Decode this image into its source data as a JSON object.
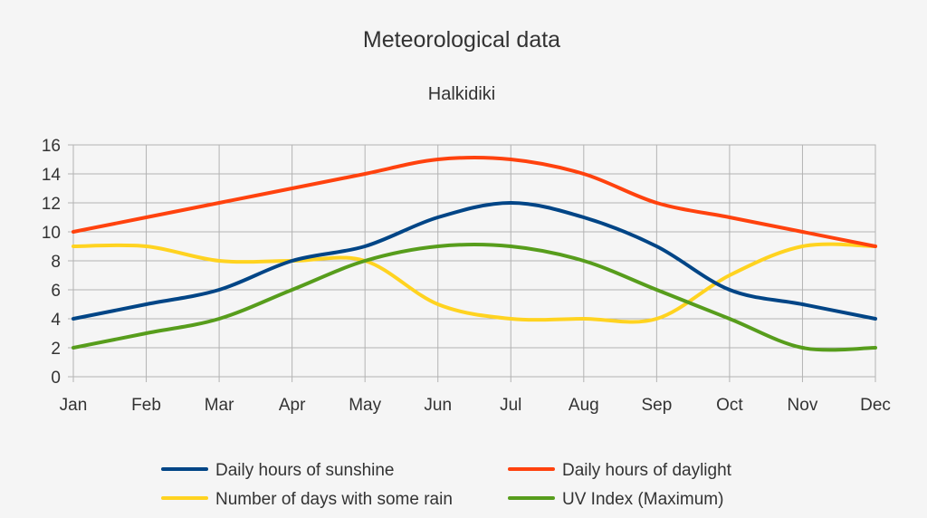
{
  "chart_data": {
    "type": "line",
    "title": "Meteorological data",
    "subtitle": "Halkidiki",
    "categories": [
      "Jan",
      "Feb",
      "Mar",
      "Apr",
      "May",
      "Jun",
      "Jul",
      "Aug",
      "Sep",
      "Oct",
      "Nov",
      "Dec"
    ],
    "y_ticks": [
      "0",
      "2",
      "4",
      "6",
      "8",
      "10",
      "12",
      "14",
      "16"
    ],
    "ylim": [
      0,
      16
    ],
    "grid": true,
    "legend_position": "bottom",
    "series": [
      {
        "name": "Daily hours of sunshine",
        "color": "#004586",
        "values": [
          4,
          5,
          6,
          8,
          9,
          11,
          12,
          11,
          9,
          6,
          5,
          4
        ]
      },
      {
        "name": "Daily hours of daylight",
        "color": "#ff420e",
        "values": [
          10,
          11,
          12,
          13,
          14,
          15,
          15,
          14,
          12,
          11,
          10,
          9
        ]
      },
      {
        "name": "Number of days with some rain",
        "color": "#ffd320",
        "values": [
          9,
          9,
          8,
          8,
          8,
          5,
          4,
          4,
          4,
          7,
          9,
          9
        ]
      },
      {
        "name": "UV Index (Maximum)",
        "color": "#579d1c",
        "values": [
          2,
          3,
          4,
          6,
          8,
          9,
          9,
          8,
          6,
          4,
          2,
          2
        ]
      }
    ]
  }
}
